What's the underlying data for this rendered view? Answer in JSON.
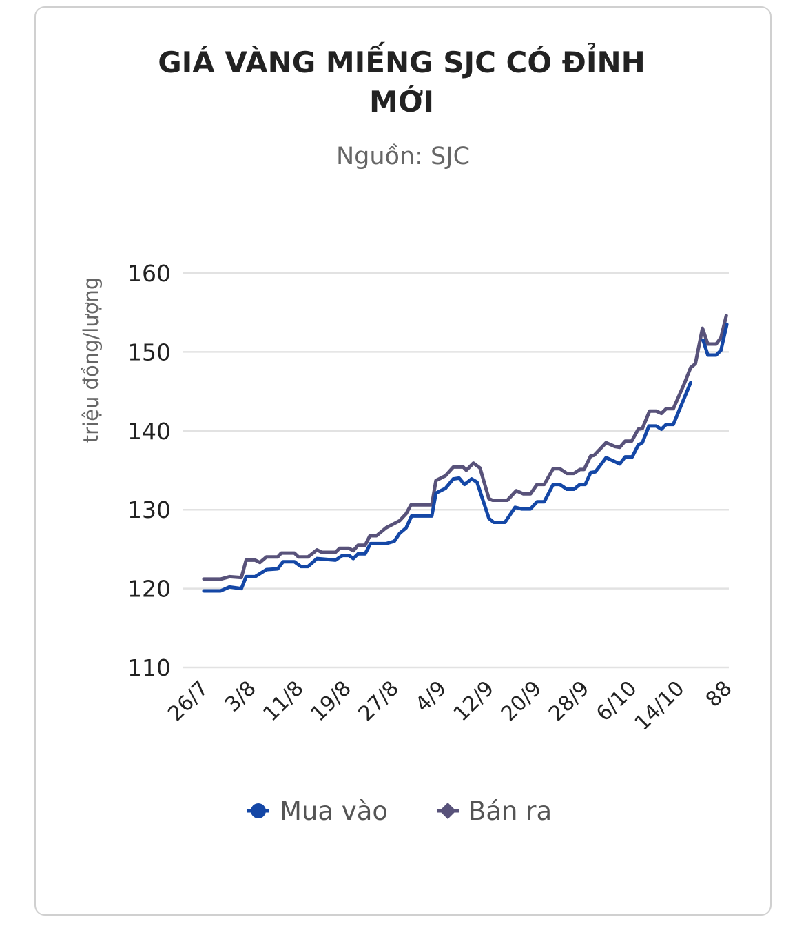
{
  "chart_data": {
    "type": "line",
    "title_lines": [
      "GIÁ VÀNG MIẾNG SJC CÓ ĐỈNH",
      "MỚI"
    ],
    "subtitle": "Nguồn: SJC",
    "xlabel": "",
    "ylabel": "triệu đồng/lượng",
    "ylim": [
      110,
      160
    ],
    "yticks": [
      110,
      120,
      130,
      140,
      150,
      160
    ],
    "xlim": [
      0,
      88
    ],
    "xticks": [
      {
        "day": 0,
        "label": "26/7"
      },
      {
        "day": 8,
        "label": "3/8"
      },
      {
        "day": 16,
        "label": "11/8"
      },
      {
        "day": 24,
        "label": "19/8"
      },
      {
        "day": 32,
        "label": "27/8"
      },
      {
        "day": 40,
        "label": "4/9"
      },
      {
        "day": 48,
        "label": "12/9"
      },
      {
        "day": 56,
        "label": "20/9"
      },
      {
        "day": 64,
        "label": "28/9"
      },
      {
        "day": 72,
        "label": "6/10"
      },
      {
        "day": 80,
        "label": "14/10"
      },
      {
        "day": 88,
        "label": "88"
      }
    ],
    "grid": true,
    "legend_position": "bottom",
    "series": [
      {
        "name": "Mua vào",
        "color": "#1447a6",
        "marker": "circle",
        "points": [
          [
            0,
            119.7
          ],
          [
            2.8,
            119.7
          ],
          [
            4.3,
            120.2
          ],
          [
            6.3,
            120.0
          ],
          [
            7.1,
            121.5
          ],
          [
            8.6,
            121.5
          ],
          [
            10.5,
            122.4
          ],
          [
            12.4,
            122.5
          ],
          [
            13.3,
            123.4
          ],
          [
            15.2,
            123.4
          ],
          [
            16.3,
            122.8
          ],
          [
            17.5,
            122.8
          ],
          [
            19,
            123.8
          ],
          [
            22.1,
            123.6
          ],
          [
            23.3,
            124.2
          ],
          [
            24.4,
            124.2
          ],
          [
            25.1,
            123.8
          ],
          [
            25.9,
            124.4
          ],
          [
            27.1,
            124.4
          ],
          [
            28,
            125.7
          ],
          [
            30.6,
            125.7
          ],
          [
            32,
            126.0
          ],
          [
            32.9,
            127.0
          ],
          [
            34,
            127.7
          ],
          [
            34.9,
            129.2
          ],
          [
            38.3,
            129.2
          ],
          [
            39,
            132.1
          ],
          [
            40.6,
            132.7
          ],
          [
            41.9,
            133.9
          ],
          [
            42.9,
            134.0
          ],
          [
            43.8,
            133.2
          ],
          [
            45,
            133.9
          ],
          [
            45.9,
            133.5
          ],
          [
            47.9,
            128.9
          ],
          [
            48.7,
            128.4
          ],
          [
            50.6,
            128.4
          ],
          [
            52.3,
            130.3
          ],
          [
            53.4,
            130.1
          ],
          [
            54.9,
            130.1
          ],
          [
            56,
            131.0
          ],
          [
            57.2,
            131.0
          ],
          [
            58.7,
            133.2
          ],
          [
            59.8,
            133.2
          ],
          [
            61,
            132.6
          ],
          [
            62.2,
            132.6
          ],
          [
            63.2,
            133.2
          ],
          [
            64.1,
            133.2
          ],
          [
            65,
            134.7
          ],
          [
            65.8,
            134.8
          ],
          [
            67.6,
            136.6
          ],
          [
            69.9,
            135.8
          ],
          [
            70.8,
            136.7
          ],
          [
            72,
            136.7
          ],
          [
            73,
            138.2
          ],
          [
            73.7,
            138.5
          ],
          [
            74.8,
            140.6
          ],
          [
            76,
            140.6
          ],
          [
            76.9,
            140.2
          ],
          [
            77.7,
            140.8
          ],
          [
            78.9,
            140.8
          ],
          [
            81.8,
            146.1
          ],
          null,
          [
            83.9,
            151.5
          ],
          [
            84.7,
            149.6
          ],
          [
            86.1,
            149.6
          ],
          [
            86.9,
            150.2
          ],
          [
            87.9,
            153.5
          ]
        ]
      },
      {
        "name": "Bán ra",
        "color": "#58527a",
        "marker": "diamond",
        "points": [
          [
            0,
            121.2
          ],
          [
            2.8,
            121.2
          ],
          [
            4.3,
            121.5
          ],
          [
            6.3,
            121.4
          ],
          [
            7.1,
            123.6
          ],
          [
            8.6,
            123.6
          ],
          [
            9.4,
            123.3
          ],
          [
            10.5,
            124.0
          ],
          [
            12.4,
            124.0
          ],
          [
            13,
            124.5
          ],
          [
            15.2,
            124.5
          ],
          [
            15.9,
            124.0
          ],
          [
            17.5,
            124.0
          ],
          [
            19,
            124.9
          ],
          [
            19.8,
            124.6
          ],
          [
            22.1,
            124.6
          ],
          [
            22.8,
            125.1
          ],
          [
            24.4,
            125.1
          ],
          [
            25.1,
            124.8
          ],
          [
            25.9,
            125.5
          ],
          [
            27.1,
            125.5
          ],
          [
            27.9,
            126.7
          ],
          [
            29,
            126.7
          ],
          [
            30.6,
            127.7
          ],
          [
            32.9,
            128.6
          ],
          [
            34,
            129.5
          ],
          [
            34.8,
            130.6
          ],
          [
            38.3,
            130.6
          ],
          [
            39,
            133.7
          ],
          [
            40.6,
            134.3
          ],
          [
            41.9,
            135.4
          ],
          [
            43.6,
            135.4
          ],
          [
            44.1,
            135.0
          ],
          [
            45.3,
            135.9
          ],
          [
            46.4,
            135.3
          ],
          [
            47.9,
            131.4
          ],
          [
            48.5,
            131.2
          ],
          [
            51,
            131.2
          ],
          [
            52.5,
            132.4
          ],
          [
            53.7,
            132.0
          ],
          [
            54.9,
            132.0
          ],
          [
            56,
            133.2
          ],
          [
            57.2,
            133.2
          ],
          [
            58.7,
            135.2
          ],
          [
            59.8,
            135.2
          ],
          [
            61,
            134.6
          ],
          [
            62.2,
            134.6
          ],
          [
            63.2,
            135.1
          ],
          [
            63.9,
            135.1
          ],
          [
            65,
            136.8
          ],
          [
            65.6,
            136.9
          ],
          [
            67.6,
            138.5
          ],
          [
            69.1,
            138.0
          ],
          [
            69.9,
            137.9
          ],
          [
            70.8,
            138.7
          ],
          [
            71.9,
            138.7
          ],
          [
            73,
            140.2
          ],
          [
            73.7,
            140.3
          ],
          [
            74.9,
            142.5
          ],
          [
            76,
            142.5
          ],
          [
            76.9,
            142.2
          ],
          [
            77.7,
            142.8
          ],
          [
            78.9,
            142.8
          ],
          [
            80.7,
            145.9
          ],
          [
            81.8,
            148.0
          ],
          [
            82.6,
            148.5
          ],
          [
            83.8,
            153.0
          ],
          [
            84.7,
            151.0
          ],
          [
            86.1,
            151.0
          ],
          [
            86.9,
            151.8
          ],
          [
            87.8,
            154.6
          ]
        ]
      }
    ]
  }
}
